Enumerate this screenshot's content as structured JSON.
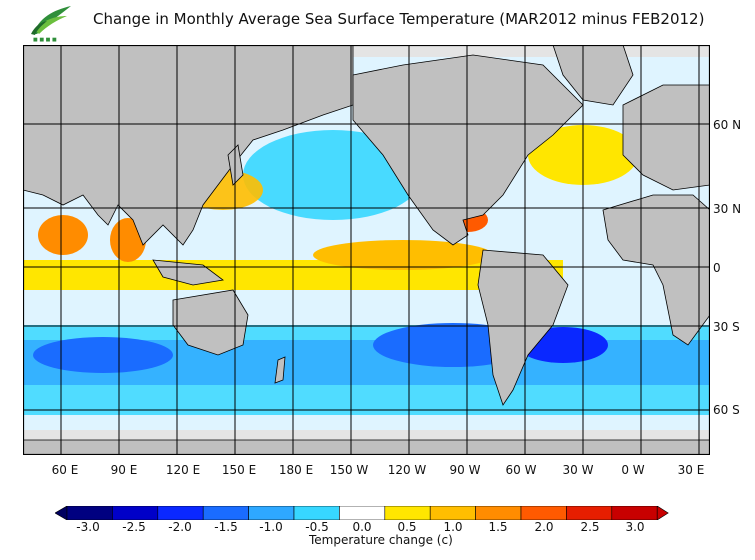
{
  "title": "Change in Monthly Average Sea Surface Temperature (MAR2012 minus FEB2012)",
  "logo": {
    "icon": "observatory-logo-icon",
    "color": "#2f8f3a"
  },
  "map": {
    "land_color": "#c0c0c0",
    "ice_color": "#e4e4e4",
    "grid_color": "#000000",
    "x_tick_labels": [
      "60 E",
      "90 E",
      "120 E",
      "150 E",
      "180 E",
      "150 W",
      "120 W",
      "90 W",
      "60 W",
      "30 W",
      "0 W",
      "30 E"
    ],
    "y_tick_labels": [
      "60 N",
      "30 N",
      "0",
      "30 S",
      "60 S"
    ]
  },
  "colorbar": {
    "title": "Temperature change  (c)",
    "ticks": [
      "-3.0",
      "-2.5",
      "-2.0",
      "-1.5",
      "-1.0",
      "-0.5",
      "0.0",
      "0.5",
      "1.0",
      "1.5",
      "2.0",
      "2.5",
      "3.0"
    ],
    "colors": [
      "#000080",
      "#0000c8",
      "#0a28ff",
      "#1a6cff",
      "#2ea8ff",
      "#37d7ff",
      "#ffffff",
      "#ffe600",
      "#ffbe00",
      "#ff8c00",
      "#ff5a00",
      "#e61e00",
      "#c80000"
    ],
    "under_color": "#000060",
    "over_color": "#c80000"
  }
}
